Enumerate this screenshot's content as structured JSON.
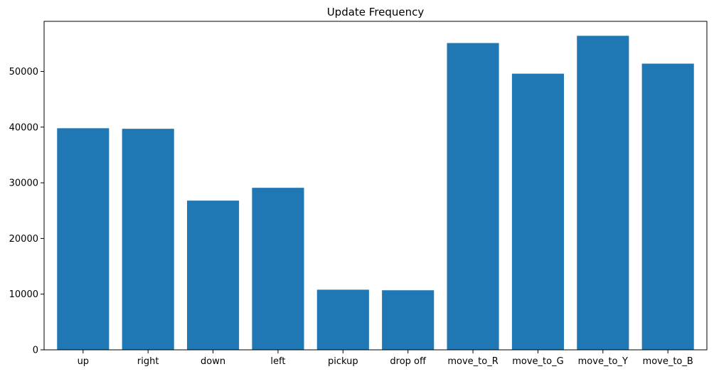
{
  "chart_data": {
    "type": "bar",
    "title": "Update Frequency",
    "xlabel": "",
    "ylabel": "",
    "categories": [
      "up",
      "right",
      "down",
      "left",
      "pickup",
      "drop off",
      "move_to_R",
      "move_to_G",
      "move_to_Y",
      "move_to_B"
    ],
    "values": [
      39800,
      39700,
      26800,
      29100,
      10800,
      10700,
      55100,
      49600,
      56400,
      51400
    ],
    "ylim": [
      0,
      59000
    ],
    "yticks": [
      0,
      10000,
      20000,
      30000,
      40000,
      50000
    ],
    "bar_color": "#1f77b4",
    "grid": false,
    "legend": "none"
  }
}
